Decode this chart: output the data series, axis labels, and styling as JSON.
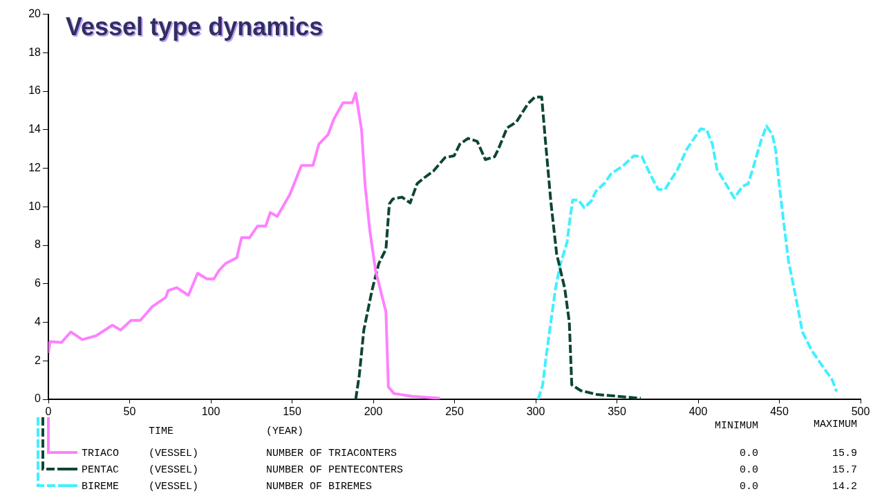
{
  "chart_data": {
    "type": "line",
    "title": "Vessel type dynamics",
    "xlabel": "TIME (YEAR)",
    "xlim": [
      0,
      500
    ],
    "xticks": [
      0,
      50,
      100,
      150,
      200,
      250,
      300,
      350,
      400,
      450,
      500
    ],
    "ylim": [
      0,
      20
    ],
    "yticks": [
      0,
      2,
      4,
      6,
      8,
      10,
      12,
      14,
      16,
      18,
      20
    ],
    "grid": false,
    "legend": "bottom",
    "marker": "none",
    "series": [
      {
        "name": "TRIACO",
        "color": "#ff80ff",
        "line_style": "solid",
        "x": [
          0,
          1,
          8.1,
          13.8,
          20.9,
          29.4,
          39.4,
          44.5,
          50.9,
          56.6,
          63.8,
          72.3,
          73.7,
          79.1,
          86.2,
          91.9,
          97.6,
          101.9,
          104.7,
          109,
          116,
          118.9,
          123.9,
          128.8,
          133.8,
          136.6,
          140.9,
          148.7,
          155.8,
          162.9,
          166.5,
          172.2,
          175.7,
          181.4,
          187.1,
          189.2,
          192.8,
          195,
          197.9,
          201.4,
          207.8,
          209.3,
          212.7,
          224,
          241
        ],
        "values": [
          2.4,
          3.0,
          2.95,
          3.5,
          3.1,
          3.3,
          3.85,
          3.6,
          4.1,
          4.1,
          4.8,
          5.3,
          5.65,
          5.8,
          5.4,
          6.55,
          6.25,
          6.25,
          6.65,
          7.05,
          7.35,
          8.4,
          8.4,
          9.0,
          9.0,
          9.7,
          9.5,
          10.65,
          12.15,
          12.15,
          13.25,
          13.75,
          14.55,
          15.4,
          15.4,
          15.9,
          14.0,
          11.1,
          8.75,
          6.7,
          4.55,
          0.65,
          0.3,
          0.15,
          0.05
        ]
      },
      {
        "name": "PENTAC",
        "color": "#0d4632",
        "line_style": "dashed",
        "x": [
          189.2,
          191.4,
          194.2,
          199.2,
          203.4,
          207.8,
          209.9,
          212,
          217.7,
          222.7,
          227,
          231.3,
          237,
          244.1,
          249.8,
          253.3,
          258.3,
          264,
          269,
          274.7,
          276.8,
          282.4,
          288.1,
          295.2,
          299.5,
          303.7,
          305.8,
          309.4,
          312.9,
          317.9,
          320.7,
          322.2,
          327.8,
          337.7,
          364.7
        ],
        "values": [
          0,
          1.25,
          3.6,
          5.65,
          7.05,
          7.8,
          10.15,
          10.4,
          10.5,
          10.2,
          11.2,
          11.5,
          11.85,
          12.55,
          12.65,
          13.25,
          13.55,
          13.4,
          12.45,
          12.6,
          12.95,
          14.1,
          14.4,
          15.35,
          15.7,
          15.7,
          13.6,
          10.2,
          7.55,
          5.75,
          4.0,
          0.75,
          0.45,
          0.25,
          0.05
        ]
      },
      {
        "name": "BIREME",
        "color": "#40f0ff",
        "line_style": "dashed",
        "x": [
          301.5,
          304.3,
          306.4,
          309.3,
          312.2,
          315,
          319.3,
          321.4,
          322.8,
          326.4,
          329.9,
          334.2,
          337,
          342.7,
          346.3,
          354.1,
          360.5,
          365.4,
          370.4,
          375.4,
          379.6,
          387.4,
          393.1,
          401.6,
          405.2,
          408.8,
          411.6,
          415.9,
          422.3,
          427.2,
          430.8,
          433.6,
          438.6,
          442.1,
          445.7,
          447.8,
          450,
          452.8,
          455.6,
          459.9,
          464.2,
          469.8,
          475.5,
          482.6,
          485.2
        ],
        "values": [
          0,
          0.75,
          2.2,
          4.0,
          5.75,
          6.95,
          8.15,
          9.55,
          10.35,
          10.35,
          9.95,
          10.3,
          10.8,
          11.25,
          11.7,
          12.15,
          12.65,
          12.6,
          11.7,
          10.9,
          10.9,
          11.95,
          13.0,
          14.05,
          14.0,
          13.25,
          11.95,
          11.35,
          10.45,
          11.05,
          11.2,
          11.95,
          13.4,
          14.2,
          13.75,
          12.9,
          11.1,
          9.1,
          7.2,
          5.4,
          3.5,
          2.55,
          1.85,
          1.0,
          0.4
        ]
      }
    ],
    "annotations": [
      "MINIMUM",
      "MAXIMUM",
      "(VESSEL)",
      "NUMBER OF TRIACONTERS",
      "0.0",
      "15.9",
      "(VESSEL)",
      "NUMBER OF PENTECONTERS",
      "0.0",
      "15.7",
      "(VESSEL)",
      "NUMBER OF BIREMES",
      "0.0",
      "14.2"
    ]
  }
}
